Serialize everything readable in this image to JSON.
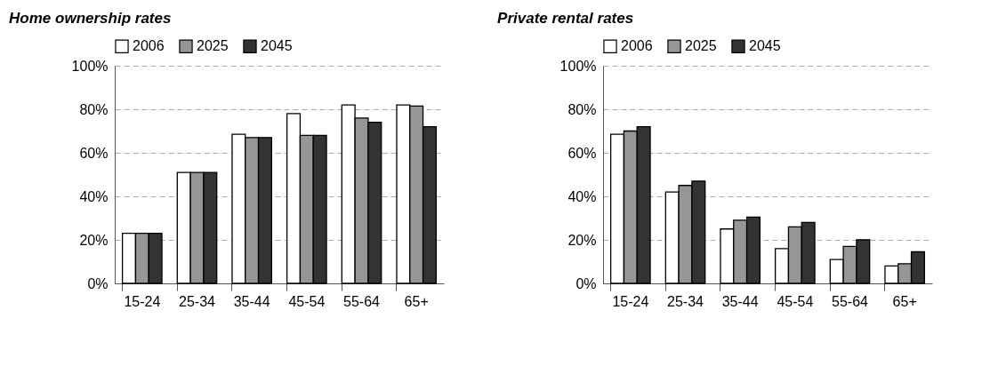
{
  "chart_data": [
    {
      "type": "bar",
      "title": "Home ownership rates",
      "categories": [
        "15-24",
        "25-34",
        "35-44",
        "45-54",
        "55-64",
        "65+"
      ],
      "series": [
        {
          "name": "2006",
          "color": "#ffffff",
          "values": [
            23,
            51,
            68.5,
            78,
            82,
            82
          ]
        },
        {
          "name": "2025",
          "color": "#969696",
          "values": [
            23,
            51,
            67,
            68,
            76,
            81.5
          ]
        },
        {
          "name": "2045",
          "color": "#333333",
          "values": [
            23,
            51,
            67,
            68,
            74,
            72
          ]
        }
      ],
      "ylim": [
        0,
        100
      ],
      "yticks": [
        {
          "value": 0,
          "label": "0%"
        },
        {
          "value": 20,
          "label": "20%"
        },
        {
          "value": 40,
          "label": "40%"
        },
        {
          "value": 60,
          "label": "60%"
        },
        {
          "value": 80,
          "label": "80%"
        },
        {
          "value": 100,
          "label": "100%"
        }
      ],
      "grid": "y",
      "legend": "top"
    },
    {
      "type": "bar",
      "title": "Private rental rates",
      "categories": [
        "15-24",
        "25-34",
        "35-44",
        "45-54",
        "55-64",
        "65+"
      ],
      "series": [
        {
          "name": "2006",
          "color": "#ffffff",
          "values": [
            68.5,
            42,
            25,
            16,
            11,
            8
          ]
        },
        {
          "name": "2025",
          "color": "#969696",
          "values": [
            70,
            45,
            29,
            26,
            17,
            9
          ]
        },
        {
          "name": "2045",
          "color": "#333333",
          "values": [
            72,
            47,
            30.5,
            28,
            20,
            14.5
          ]
        }
      ],
      "ylim": [
        0,
        100
      ],
      "yticks": [
        {
          "value": 0,
          "label": "0%"
        },
        {
          "value": 20,
          "label": "20%"
        },
        {
          "value": 40,
          "label": "40%"
        },
        {
          "value": 60,
          "label": "60%"
        },
        {
          "value": 80,
          "label": "80%"
        },
        {
          "value": 100,
          "label": "100%"
        }
      ],
      "grid": "y",
      "legend": "top"
    }
  ]
}
